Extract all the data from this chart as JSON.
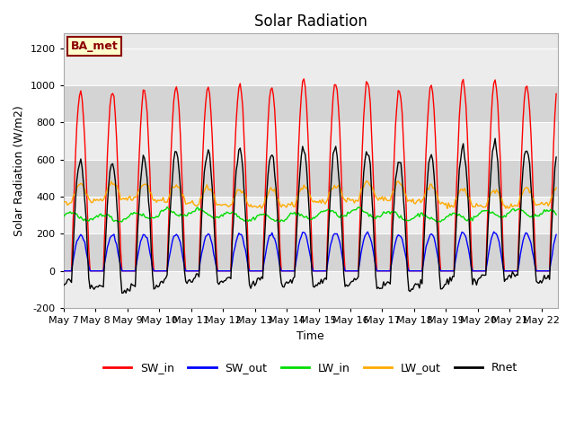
{
  "title": "Solar Radiation",
  "ylabel": "Solar Radiation (W/m2)",
  "xlabel": "Time",
  "ylim": [
    -200,
    1280
  ],
  "yticks": [
    -200,
    0,
    200,
    400,
    600,
    800,
    1000,
    1200
  ],
  "xtick_labels": [
    "May 7",
    "May 8",
    "May 9",
    "May 10",
    "May 11",
    "May 12",
    "May 13",
    "May 14",
    "May 15",
    "May 16",
    "May 17",
    "May 18",
    "May 19",
    "May 20",
    "May 21",
    "May 22"
  ],
  "series_colors": {
    "SW_in": "#ff0000",
    "SW_out": "#0000ff",
    "LW_in": "#00dd00",
    "LW_out": "#ffaa00",
    "Rnet": "#000000"
  },
  "legend_label": "BA_met",
  "fig_bg_color": "#ffffff",
  "plot_bg_color": "#e8e8e8",
  "band_color_dark": "#d4d4d4",
  "band_color_light": "#ececec",
  "linewidth": 1.0,
  "title_fontsize": 12,
  "label_fontsize": 9,
  "tick_fontsize": 8
}
